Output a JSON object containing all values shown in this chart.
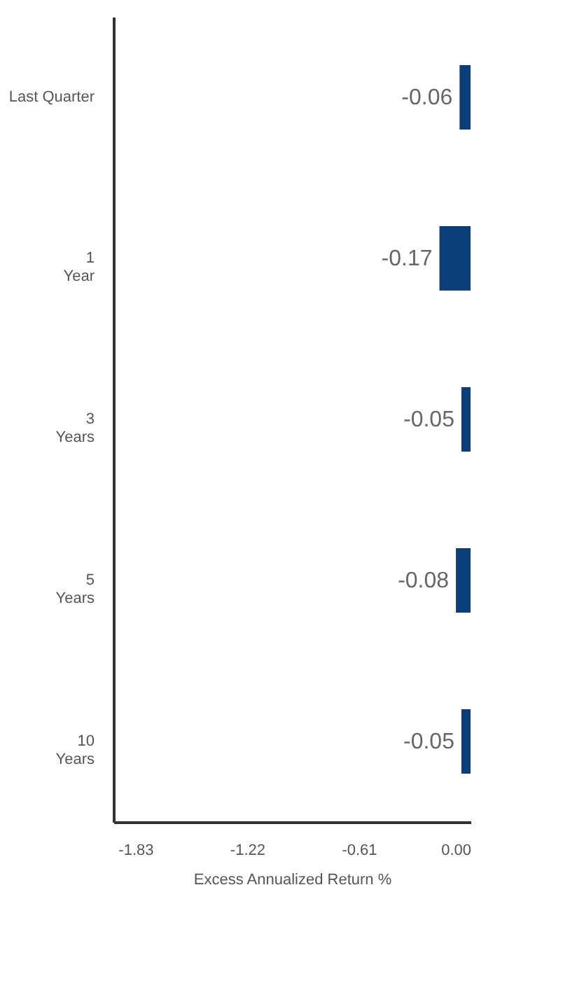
{
  "chart_data": {
    "type": "bar",
    "orientation": "horizontal",
    "categories": [
      "Last Quarter",
      "1\nYear",
      "3\nYears",
      "5\nYears",
      "10\nYears"
    ],
    "values": [
      -0.06,
      -0.17,
      -0.05,
      -0.08,
      -0.05
    ],
    "color": "#0b3d79",
    "data_labels": true,
    "xlabel": "Excess Annualized Return %",
    "xlim": [
      -1.95,
      0
    ],
    "xticks": [
      -1.83,
      -1.22,
      -0.61,
      {
        "value": 0,
        "label": "0.00"
      }
    ],
    "grid": false
  }
}
